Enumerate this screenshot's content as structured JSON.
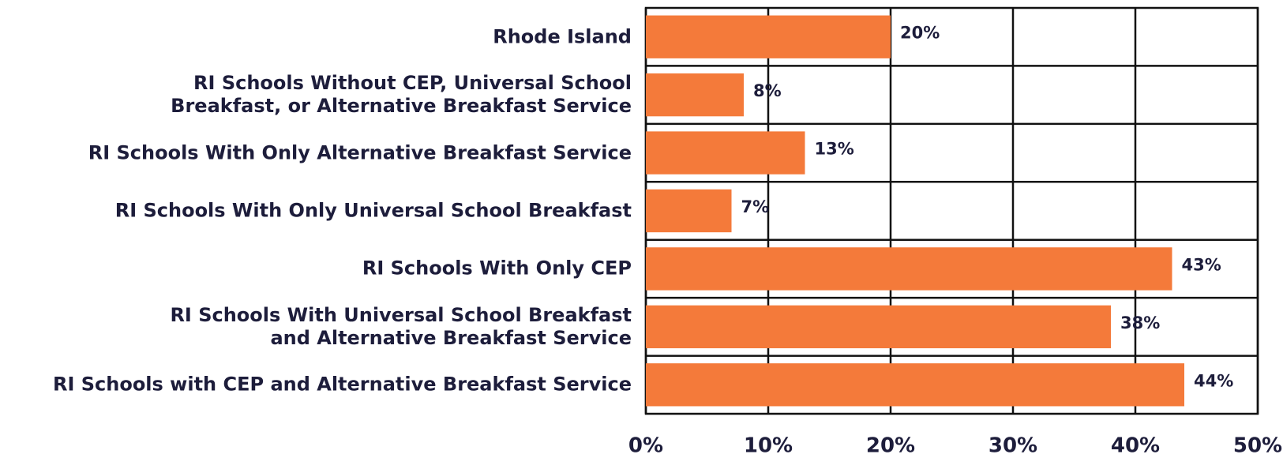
{
  "chart_data": {
    "type": "hbar",
    "categories": [
      "Rhode Island",
      "RI Schools Without CEP, Universal School\nBreakfast, or Alternative Breakfast Service",
      "RI Schools With Only Alternative Breakfast Service",
      "RI Schools With Only Universal School Breakfast",
      "RI Schools With Only CEP",
      "RI Schools With Universal School Breakfast\nand Alternative Breakfast Service",
      "RI Schools with CEP and Alternative Breakfast Service"
    ],
    "values": [
      20,
      8,
      13,
      7,
      43,
      38,
      44
    ],
    "value_labels": [
      "20%",
      "8%",
      "13%",
      "7%",
      "43%",
      "38%",
      "44%"
    ],
    "color": "#f47a3a",
    "xlim": [
      0,
      50
    ],
    "xticks": [
      {
        "value": 0,
        "label": "0%"
      },
      {
        "value": 10,
        "label": "10%"
      },
      {
        "value": 20,
        "label": "20%"
      },
      {
        "value": 30,
        "label": "30%"
      },
      {
        "value": 40,
        "label": "40%"
      },
      {
        "value": 50,
        "label": "50%"
      }
    ],
    "grid": true
  }
}
